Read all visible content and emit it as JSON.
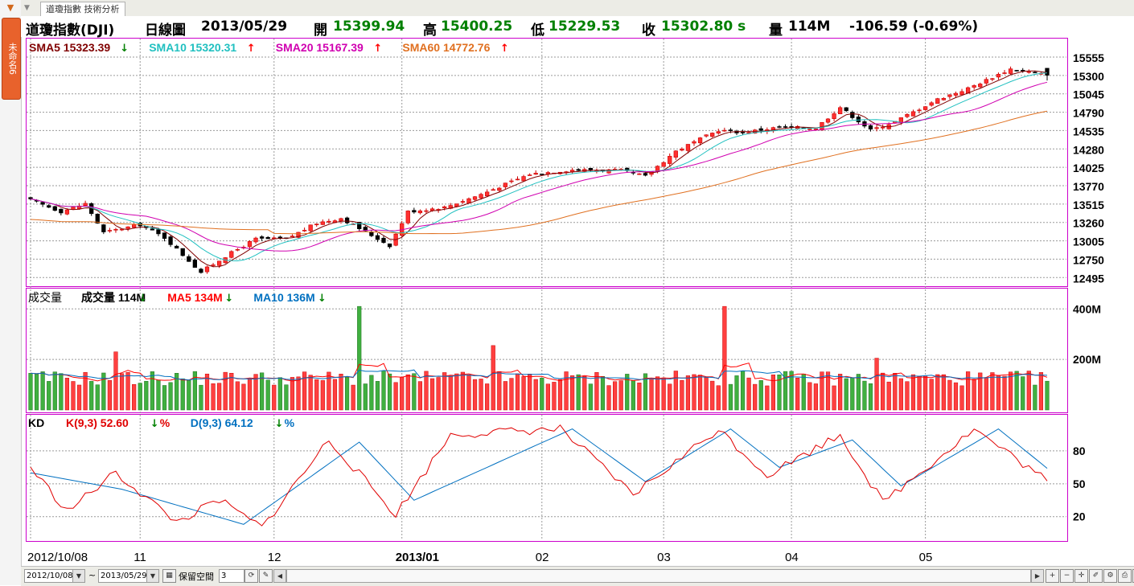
{
  "sidebar": {
    "tab_label": "未命名6"
  },
  "tabbar": {
    "tab_label": "道瓊指數 技術分析"
  },
  "header": {
    "symbol": "道瓊指數(DJI)",
    "period": "日線圖",
    "date": "2013/05/29",
    "open_label": "開",
    "open": "15399.94",
    "high_label": "高",
    "high": "15400.25",
    "low_label": "低",
    "low": "15229.53",
    "close_label": "收",
    "close": "15302.80 s",
    "volume_label": "量",
    "volume": "114M",
    "change": "-106.59 (-0.69%)"
  },
  "legends": {
    "price": [
      {
        "text": "SMA5 15323.39",
        "arrow": "down",
        "color": "#800000"
      },
      {
        "text": "SMA10 15320.31",
        "arrow": "up",
        "color": "#20c0c0"
      },
      {
        "text": "SMA20 15167.39",
        "arrow": "up",
        "color": "#d000b0"
      },
      {
        "text": "SMA60 14772.76",
        "arrow": "up",
        "color": "#e07020"
      }
    ],
    "volume_title": "成交量",
    "volume": [
      {
        "text": "成交量 114M",
        "arrow": "down",
        "color": "#000000"
      },
      {
        "text": "MA5 134M",
        "arrow": "down",
        "color": "#ff0000"
      },
      {
        "text": "MA10 136M",
        "arrow": "down",
        "color": "#0070c0"
      }
    ],
    "kd_title": "KD",
    "kd": [
      {
        "text": "K(9,3) 52.60",
        "arrow": "down",
        "suffix": "%",
        "color": "#e00000"
      },
      {
        "text": "D(9,3) 64.12",
        "arrow": "down",
        "suffix": "%",
        "color": "#0070c0"
      }
    ]
  },
  "footer": {
    "from_date": "2012/10/08",
    "tilde": "~",
    "to_date": "2013/05/29",
    "reserve_label": "保留空間",
    "reserve_value": "3"
  },
  "colors": {
    "up": "#ff3030",
    "down": "#000000",
    "vol_up": "#ff4040",
    "vol_down": "#40b040",
    "border": "#cc00cc"
  },
  "chart_data": [
    {
      "type": "candlestick",
      "title": "道瓊指數(DJI) 日線圖",
      "y_ticks": [
        15555,
        15300,
        15045,
        14790,
        14535,
        14280,
        14025,
        13770,
        13515,
        13260,
        13005,
        12750,
        12495
      ],
      "ylim": [
        12420,
        15700
      ],
      "x_tick_labels": [
        "2012/10/08",
        "11",
        "12",
        "2013/01",
        "02",
        "03",
        "04",
        "05"
      ],
      "grid": true,
      "anchors": [
        {
          "date": "2012/10/08",
          "close": 13570
        },
        {
          "date": "2012/10/15",
          "close": 13410
        },
        {
          "date": "2012/10/19",
          "close": 13520
        },
        {
          "date": "2012/10/24",
          "close": 13120
        },
        {
          "date": "2012/11/01",
          "close": 13230
        },
        {
          "date": "2012/11/07",
          "close": 13050
        },
        {
          "date": "2012/11/15",
          "close": 12570
        },
        {
          "date": "2012/11/21",
          "close": 12790
        },
        {
          "date": "2012/11/28",
          "close": 13030
        },
        {
          "date": "2012/12/05",
          "close": 13030
        },
        {
          "date": "2012/12/12",
          "close": 13250
        },
        {
          "date": "2012/12/18",
          "close": 13320
        },
        {
          "date": "2012/12/28",
          "close": 12940
        },
        {
          "date": "2013/01/02",
          "close": 13410
        },
        {
          "date": "2013/01/10",
          "close": 13470
        },
        {
          "date": "2013/01/18",
          "close": 13650
        },
        {
          "date": "2013/01/30",
          "close": 13930
        },
        {
          "date": "2013/02/08",
          "close": 13990
        },
        {
          "date": "2013/02/20",
          "close": 13980
        },
        {
          "date": "2013/02/26",
          "close": 13900
        },
        {
          "date": "2013/03/05",
          "close": 14250
        },
        {
          "date": "2013/03/14",
          "close": 14540
        },
        {
          "date": "2013/03/20",
          "close": 14510
        },
        {
          "date": "2013/03/28",
          "close": 14580
        },
        {
          "date": "2013/04/05",
          "close": 14570
        },
        {
          "date": "2013/04/11",
          "close": 14860
        },
        {
          "date": "2013/04/18",
          "close": 14540
        },
        {
          "date": "2013/04/24",
          "close": 14660
        },
        {
          "date": "2013/05/03",
          "close": 14970
        },
        {
          "date": "2013/05/10",
          "close": 15120
        },
        {
          "date": "2013/05/21",
          "close": 15390
        },
        {
          "date": "2013/05/29",
          "close": 15302.8
        }
      ],
      "series": [
        {
          "name": "SMA5",
          "value": 15323.39
        },
        {
          "name": "SMA10",
          "value": 15320.31
        },
        {
          "name": "SMA20",
          "value": 15167.39
        },
        {
          "name": "SMA60",
          "value": 14772.76
        }
      ]
    },
    {
      "type": "bar",
      "title": "成交量",
      "y_ticks": [
        "400M",
        "200M"
      ],
      "ylim": [
        0,
        420
      ],
      "last_value_M": 114,
      "spikes": [
        {
          "date": "2012/10/26",
          "value_M": 230
        },
        {
          "date": "2012/12/21",
          "value_M": 410
        },
        {
          "date": "2013/03/15",
          "value_M": 410
        },
        {
          "date": "2013/01/22",
          "value_M": 255
        },
        {
          "date": "2013/04/19",
          "value_M": 205
        }
      ],
      "series": [
        {
          "name": "MA5",
          "value_M": 134
        },
        {
          "name": "MA10",
          "value_M": 136
        }
      ]
    },
    {
      "type": "line",
      "title": "KD",
      "y_ticks": [
        80,
        50,
        20
      ],
      "ylim": [
        0,
        110
      ],
      "anchors_k": [
        {
          "date": "2012/10/08",
          "value": 65
        },
        {
          "date": "2012/10/16",
          "value": 25
        },
        {
          "date": "2012/10/26",
          "value": 60
        },
        {
          "date": "2012/11/09",
          "value": 15
        },
        {
          "date": "2012/11/20",
          "value": 35
        },
        {
          "date": "2012/11/29",
          "value": 10
        },
        {
          "date": "2012/12/14",
          "value": 90
        },
        {
          "date": "2012/12/31",
          "value": 22
        },
        {
          "date": "2013/01/11",
          "value": 95
        },
        {
          "date": "2013/02/06",
          "value": 100
        },
        {
          "date": "2013/02/22",
          "value": 40
        },
        {
          "date": "2013/03/14",
          "value": 100
        },
        {
          "date": "2013/03/26",
          "value": 58
        },
        {
          "date": "2013/04/11",
          "value": 95
        },
        {
          "date": "2013/04/22",
          "value": 33
        },
        {
          "date": "2013/05/13",
          "value": 100
        },
        {
          "date": "2013/05/29",
          "value": 52.6
        }
      ],
      "anchors_d": [
        {
          "date": "2012/10/08",
          "value": 60
        },
        {
          "date": "2012/10/29",
          "value": 45
        },
        {
          "date": "2012/11/26",
          "value": 13
        },
        {
          "date": "2012/12/21",
          "value": 88
        },
        {
          "date": "2013/01/03",
          "value": 35
        },
        {
          "date": "2013/02/08",
          "value": 100
        },
        {
          "date": "2013/02/26",
          "value": 52
        },
        {
          "date": "2013/03/18",
          "value": 100
        },
        {
          "date": "2013/03/28",
          "value": 65
        },
        {
          "date": "2013/04/15",
          "value": 90
        },
        {
          "date": "2013/04/25",
          "value": 48
        },
        {
          "date": "2013/05/17",
          "value": 100
        },
        {
          "date": "2013/05/29",
          "value": 64.12
        }
      ],
      "series": [
        {
          "name": "K(9,3)",
          "value": 52.6
        },
        {
          "name": "D(9,3)",
          "value": 64.12
        }
      ]
    }
  ]
}
